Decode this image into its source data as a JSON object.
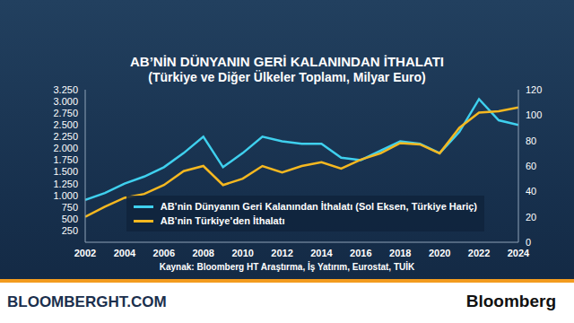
{
  "chart_data": {
    "type": "line",
    "title": "AB’NİN DÜNYANIN GERİ KALANINDAN İTHALATI",
    "subtitle": "(Türkiye ve Diğer Ülkeler Toplamı, Milyar Euro)",
    "x": [
      2002,
      2003,
      2004,
      2005,
      2006,
      2007,
      2008,
      2009,
      2010,
      2011,
      2012,
      2013,
      2014,
      2015,
      2016,
      2017,
      2018,
      2019,
      2020,
      2021,
      2022,
      2023,
      2024
    ],
    "xlim": [
      2002,
      2024
    ],
    "xticks": [
      2002,
      2004,
      2006,
      2008,
      2010,
      2012,
      2014,
      2016,
      2018,
      2020,
      2022,
      2024
    ],
    "ylim": [
      0,
      3250
    ],
    "yticks": [
      {
        "value": 250,
        "label": "250"
      },
      {
        "value": 500,
        "label": "500"
      },
      {
        "value": 750,
        "label": "750"
      },
      {
        "value": 1000,
        "label": "1.000"
      },
      {
        "value": 1250,
        "label": "1.250"
      },
      {
        "value": 1500,
        "label": "1.500"
      },
      {
        "value": 1750,
        "label": "1.750"
      },
      {
        "value": 2000,
        "label": "2.000"
      },
      {
        "value": 2250,
        "label": "2.250"
      },
      {
        "value": 2500,
        "label": "2.500"
      },
      {
        "value": 2750,
        "label": "2.750"
      },
      {
        "value": 3000,
        "label": "3.000"
      },
      {
        "value": 3250,
        "label": "3.250"
      }
    ],
    "y2lim": [
      0,
      120
    ],
    "y2ticks": [
      0,
      20,
      40,
      60,
      80,
      100,
      120
    ],
    "grid": false,
    "legend": "lower right",
    "series": [
      {
        "name": "AB’nin Dünyanın Geri Kalanından İthalatı (Sol Eksen, Türkiye Hariç)",
        "color": "#3fd0ee",
        "values": [
          900,
          1050,
          1250,
          1400,
          1600,
          1900,
          2250,
          1600,
          1900,
          2250,
          2150,
          2100,
          2100,
          1800,
          1750,
          1950,
          2150,
          2100,
          1900,
          2350,
          3050,
          2600,
          2500
        ]
      },
      {
        "name": "AB’nin Türkiye’den İthalatı",
        "color": "#f5b820",
        "axis": "y2",
        "values": [
          20,
          28,
          35,
          38,
          45,
          56,
          60,
          45,
          50,
          60,
          55,
          60,
          63,
          58,
          65,
          70,
          78,
          77,
          70,
          90,
          102,
          103,
          106
        ]
      }
    ],
    "annotations": [
      "Kaynak: Bloomberg HT Araştırma, İş Yatırım, Eurostat, TUİK",
      "BLOOMBERGHT.COM",
      "Bloomberg"
    ]
  }
}
